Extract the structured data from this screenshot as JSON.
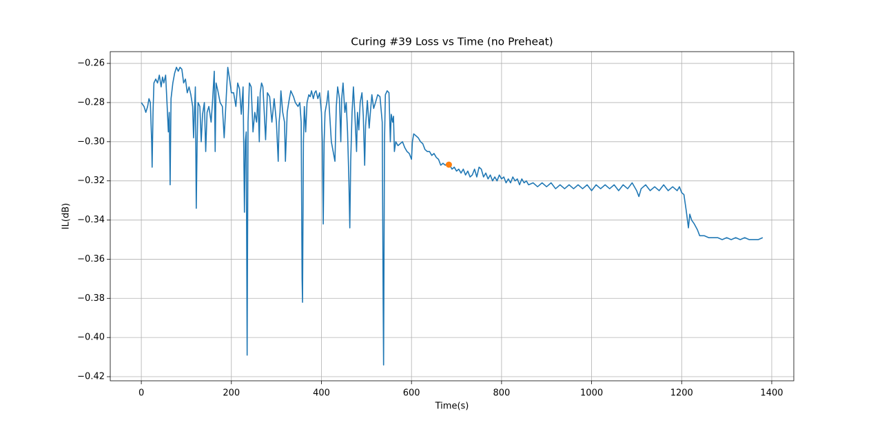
{
  "chart_data": {
    "type": "line",
    "title": "Curing #39 Loss vs Time (no Preheat)",
    "x_label": "Time(s)",
    "y_label": "IL(dB)",
    "xlim": [
      -69,
      1449
    ],
    "ylim": [
      -0.4221,
      -0.254
    ],
    "xticks": [
      0,
      200,
      400,
      600,
      800,
      1000,
      1200,
      1400
    ],
    "yticks": [
      {
        "value": -0.42,
        "label": "−0.42"
      },
      {
        "value": -0.4,
        "label": "−0.40"
      },
      {
        "value": -0.38,
        "label": "−0.38"
      },
      {
        "value": -0.36,
        "label": "−0.36"
      },
      {
        "value": -0.34,
        "label": "−0.34"
      },
      {
        "value": -0.32,
        "label": "−0.32"
      },
      {
        "value": -0.3,
        "label": "−0.30"
      },
      {
        "value": -0.28,
        "label": "−0.28"
      },
      {
        "value": -0.26,
        "label": "−0.26"
      }
    ],
    "grid": true,
    "series": [
      {
        "color": "#1f77b4",
        "style": "line",
        "x": [
          0,
          3,
          6,
          10,
          14,
          17,
          20,
          23,
          24,
          26,
          28,
          32,
          36,
          40,
          44,
          47,
          50,
          54,
          57,
          60,
          62,
          64,
          66,
          70,
          74,
          78,
          82,
          86,
          90,
          94,
          98,
          102,
          106,
          110,
          114,
          116,
          118,
          120,
          122,
          124,
          126,
          130,
          133,
          136,
          140,
          143,
          146,
          150,
          155,
          158,
          162,
          164,
          166,
          170,
          175,
          180,
          184,
          188,
          192,
          196,
          200,
          205,
          210,
          214,
          218,
          222,
          226,
          229,
          231,
          233,
          235,
          237,
          240,
          244,
          248,
          252,
          256,
          259,
          262,
          264,
          267,
          270,
          273,
          276,
          280,
          285,
          290,
          295,
          300,
          304,
          306,
          308,
          310,
          314,
          318,
          320,
          324,
          328,
          332,
          338,
          342,
          348,
          352,
          355,
          357,
          358,
          360,
          362,
          365,
          368,
          372,
          375,
          378,
          382,
          385,
          388,
          392,
          396,
          400,
          402,
          404,
          406,
          408,
          412,
          415,
          418,
          422,
          426,
          430,
          433,
          436,
          440,
          443,
          445,
          448,
          452,
          455,
          458,
          461,
          463,
          465,
          468,
          471,
          474,
          478,
          480,
          483,
          486,
          490,
          493,
          496,
          498,
          502,
          506,
          508,
          512,
          516,
          520,
          525,
          530,
          535,
          537,
          538,
          540,
          542,
          546,
          550,
          553,
          555,
          558,
          560,
          562,
          565,
          570,
          575,
          580,
          585,
          590,
          595,
          600,
          602,
          605,
          610,
          615,
          620,
          625,
          630,
          635,
          640,
          645,
          650,
          655,
          660,
          665,
          670,
          675,
          680,
          685,
          690,
          695,
          700,
          705,
          710,
          715,
          720,
          725,
          730,
          735,
          740,
          745,
          750,
          755,
          760,
          765,
          770,
          775,
          780,
          785,
          790,
          795,
          800,
          805,
          810,
          815,
          820,
          825,
          830,
          835,
          840,
          845,
          850,
          855,
          860,
          870,
          880,
          890,
          900,
          910,
          920,
          930,
          940,
          950,
          960,
          970,
          980,
          990,
          1000,
          1010,
          1020,
          1030,
          1040,
          1050,
          1060,
          1070,
          1080,
          1090,
          1100,
          1105,
          1110,
          1120,
          1130,
          1140,
          1150,
          1160,
          1170,
          1180,
          1190,
          1195,
          1200,
          1205,
          1210,
          1215,
          1218,
          1222,
          1228,
          1235,
          1240,
          1250,
          1260,
          1270,
          1280,
          1290,
          1300,
          1310,
          1320,
          1330,
          1340,
          1350,
          1360,
          1370,
          1380
        ],
        "values": [
          -0.28,
          -0.281,
          -0.282,
          -0.285,
          -0.282,
          -0.278,
          -0.28,
          -0.3,
          -0.313,
          -0.285,
          -0.27,
          -0.268,
          -0.27,
          -0.266,
          -0.272,
          -0.267,
          -0.27,
          -0.266,
          -0.28,
          -0.295,
          -0.285,
          -0.322,
          -0.278,
          -0.27,
          -0.265,
          -0.262,
          -0.264,
          -0.262,
          -0.263,
          -0.27,
          -0.268,
          -0.275,
          -0.272,
          -0.276,
          -0.282,
          -0.298,
          -0.285,
          -0.272,
          -0.334,
          -0.3,
          -0.28,
          -0.282,
          -0.3,
          -0.286,
          -0.28,
          -0.305,
          -0.285,
          -0.282,
          -0.29,
          -0.28,
          -0.264,
          -0.305,
          -0.27,
          -0.274,
          -0.28,
          -0.282,
          -0.298,
          -0.28,
          -0.262,
          -0.268,
          -0.275,
          -0.275,
          -0.282,
          -0.27,
          -0.273,
          -0.286,
          -0.272,
          -0.336,
          -0.3,
          -0.295,
          -0.409,
          -0.29,
          -0.27,
          -0.272,
          -0.295,
          -0.285,
          -0.29,
          -0.277,
          -0.3,
          -0.275,
          -0.27,
          -0.272,
          -0.285,
          -0.299,
          -0.275,
          -0.277,
          -0.29,
          -0.278,
          -0.29,
          -0.31,
          -0.29,
          -0.285,
          -0.274,
          -0.285,
          -0.29,
          -0.31,
          -0.285,
          -0.279,
          -0.274,
          -0.277,
          -0.28,
          -0.282,
          -0.28,
          -0.29,
          -0.37,
          -0.382,
          -0.3,
          -0.282,
          -0.295,
          -0.28,
          -0.276,
          -0.277,
          -0.274,
          -0.278,
          -0.275,
          -0.274,
          -0.278,
          -0.275,
          -0.285,
          -0.3,
          -0.342,
          -0.3,
          -0.285,
          -0.28,
          -0.274,
          -0.285,
          -0.3,
          -0.305,
          -0.31,
          -0.282,
          -0.272,
          -0.278,
          -0.3,
          -0.278,
          -0.27,
          -0.285,
          -0.28,
          -0.295,
          -0.32,
          -0.344,
          -0.31,
          -0.285,
          -0.272,
          -0.285,
          -0.305,
          -0.285,
          -0.294,
          -0.28,
          -0.275,
          -0.287,
          -0.312,
          -0.292,
          -0.279,
          -0.293,
          -0.287,
          -0.276,
          -0.283,
          -0.28,
          -0.276,
          -0.277,
          -0.29,
          -0.38,
          -0.414,
          -0.3,
          -0.276,
          -0.274,
          -0.275,
          -0.3,
          -0.286,
          -0.29,
          -0.287,
          -0.305,
          -0.3,
          -0.302,
          -0.301,
          -0.3,
          -0.303,
          -0.305,
          -0.306,
          -0.309,
          -0.3,
          -0.296,
          -0.297,
          -0.298,
          -0.3,
          -0.301,
          -0.304,
          -0.305,
          -0.305,
          -0.307,
          -0.306,
          -0.308,
          -0.309,
          -0.312,
          -0.311,
          -0.312,
          -0.311,
          -0.312,
          -0.314,
          -0.313,
          -0.315,
          -0.314,
          -0.316,
          -0.314,
          -0.317,
          -0.315,
          -0.318,
          -0.317,
          -0.314,
          -0.318,
          -0.313,
          -0.314,
          -0.318,
          -0.316,
          -0.319,
          -0.317,
          -0.32,
          -0.318,
          -0.32,
          -0.317,
          -0.319,
          -0.318,
          -0.321,
          -0.319,
          -0.321,
          -0.318,
          -0.32,
          -0.319,
          -0.322,
          -0.319,
          -0.321,
          -0.32,
          -0.322,
          -0.321,
          -0.323,
          -0.321,
          -0.323,
          -0.321,
          -0.324,
          -0.322,
          -0.324,
          -0.322,
          -0.324,
          -0.322,
          -0.324,
          -0.322,
          -0.325,
          -0.322,
          -0.324,
          -0.322,
          -0.324,
          -0.322,
          -0.325,
          -0.322,
          -0.324,
          -0.321,
          -0.325,
          -0.328,
          -0.324,
          -0.322,
          -0.325,
          -0.323,
          -0.325,
          -0.322,
          -0.325,
          -0.323,
          -0.325,
          -0.323,
          -0.326,
          -0.327,
          -0.335,
          -0.344,
          -0.337,
          -0.34,
          -0.342,
          -0.345,
          -0.348,
          -0.348,
          -0.349,
          -0.349,
          -0.349,
          -0.35,
          -0.349,
          -0.35,
          -0.349,
          -0.35,
          -0.349,
          -0.35,
          -0.35,
          -0.35,
          -0.349
        ]
      },
      {
        "color": "#ff7f0e",
        "style": "marker",
        "x": [
          683
        ],
        "values": [
          -0.3117
        ]
      }
    ]
  }
}
